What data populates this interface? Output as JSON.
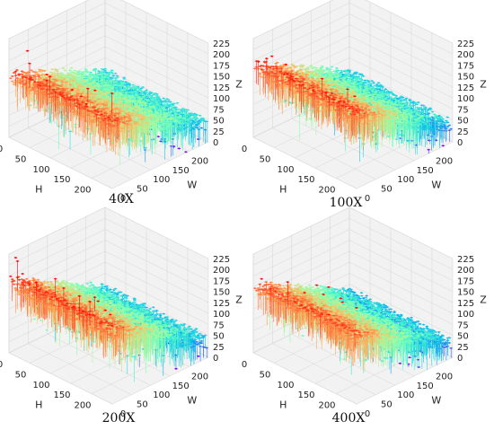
{
  "chart_data": [
    {
      "type": "surface3d",
      "caption": "40X",
      "xlabel": "H",
      "ylabel": "W",
      "zlabel": "Z",
      "xlim": [
        0,
        250
      ],
      "ylim": [
        0,
        250
      ],
      "zlim": [
        0,
        225
      ],
      "xticks": [
        0,
        50,
        100,
        150,
        200
      ],
      "yticks": [
        0,
        50,
        100,
        150,
        200
      ],
      "zticks": [
        0,
        25,
        50,
        75,
        100,
        125,
        150,
        175,
        200,
        225
      ],
      "colormap": "rainbow",
      "profile": {
        "h_start": 140,
        "h_end": 40,
        "noise": 30,
        "spike_max": 215
      },
      "grid": true
    },
    {
      "type": "surface3d",
      "caption": "100X",
      "xlabel": "H",
      "ylabel": "W",
      "zlabel": "Z",
      "xlim": [
        0,
        250
      ],
      "ylim": [
        0,
        250
      ],
      "zlim": [
        0,
        225
      ],
      "xticks": [
        0,
        50,
        100,
        150,
        200
      ],
      "yticks": [
        0,
        50,
        100,
        150,
        200
      ],
      "zticks": [
        0,
        25,
        50,
        75,
        100,
        125,
        150,
        175,
        200,
        225
      ],
      "colormap": "rainbow",
      "profile": {
        "h_start": 160,
        "h_end": 35,
        "noise": 35,
        "spike_max": 215
      },
      "grid": true
    },
    {
      "type": "surface3d",
      "caption": "200X",
      "xlabel": "H",
      "ylabel": "W",
      "zlabel": "Z",
      "xlim": [
        0,
        250
      ],
      "ylim": [
        0,
        250
      ],
      "zlim": [
        0,
        225
      ],
      "xticks": [
        0,
        50,
        100,
        150,
        200
      ],
      "yticks": [
        0,
        50,
        100,
        150,
        200
      ],
      "zticks": [
        0,
        25,
        50,
        75,
        100,
        125,
        150,
        175,
        200,
        225
      ],
      "colormap": "rainbow",
      "profile": {
        "h_start": 160,
        "h_end": 35,
        "noise": 35,
        "spike_max": 220
      },
      "grid": true
    },
    {
      "type": "surface3d",
      "caption": "400X",
      "xlabel": "H",
      "ylabel": "W",
      "zlabel": "Z",
      "xlim": [
        0,
        250
      ],
      "ylim": [
        0,
        250
      ],
      "zlim": [
        0,
        225
      ],
      "xticks": [
        0,
        50,
        100,
        150,
        200
      ],
      "yticks": [
        0,
        50,
        100,
        150,
        200
      ],
      "zticks": [
        0,
        25,
        50,
        75,
        100,
        125,
        150,
        175,
        200,
        225
      ],
      "colormap": "rainbow",
      "profile": {
        "h_start": 150,
        "h_end": 30,
        "noise": 30,
        "spike_max": 225
      },
      "grid": true
    }
  ]
}
